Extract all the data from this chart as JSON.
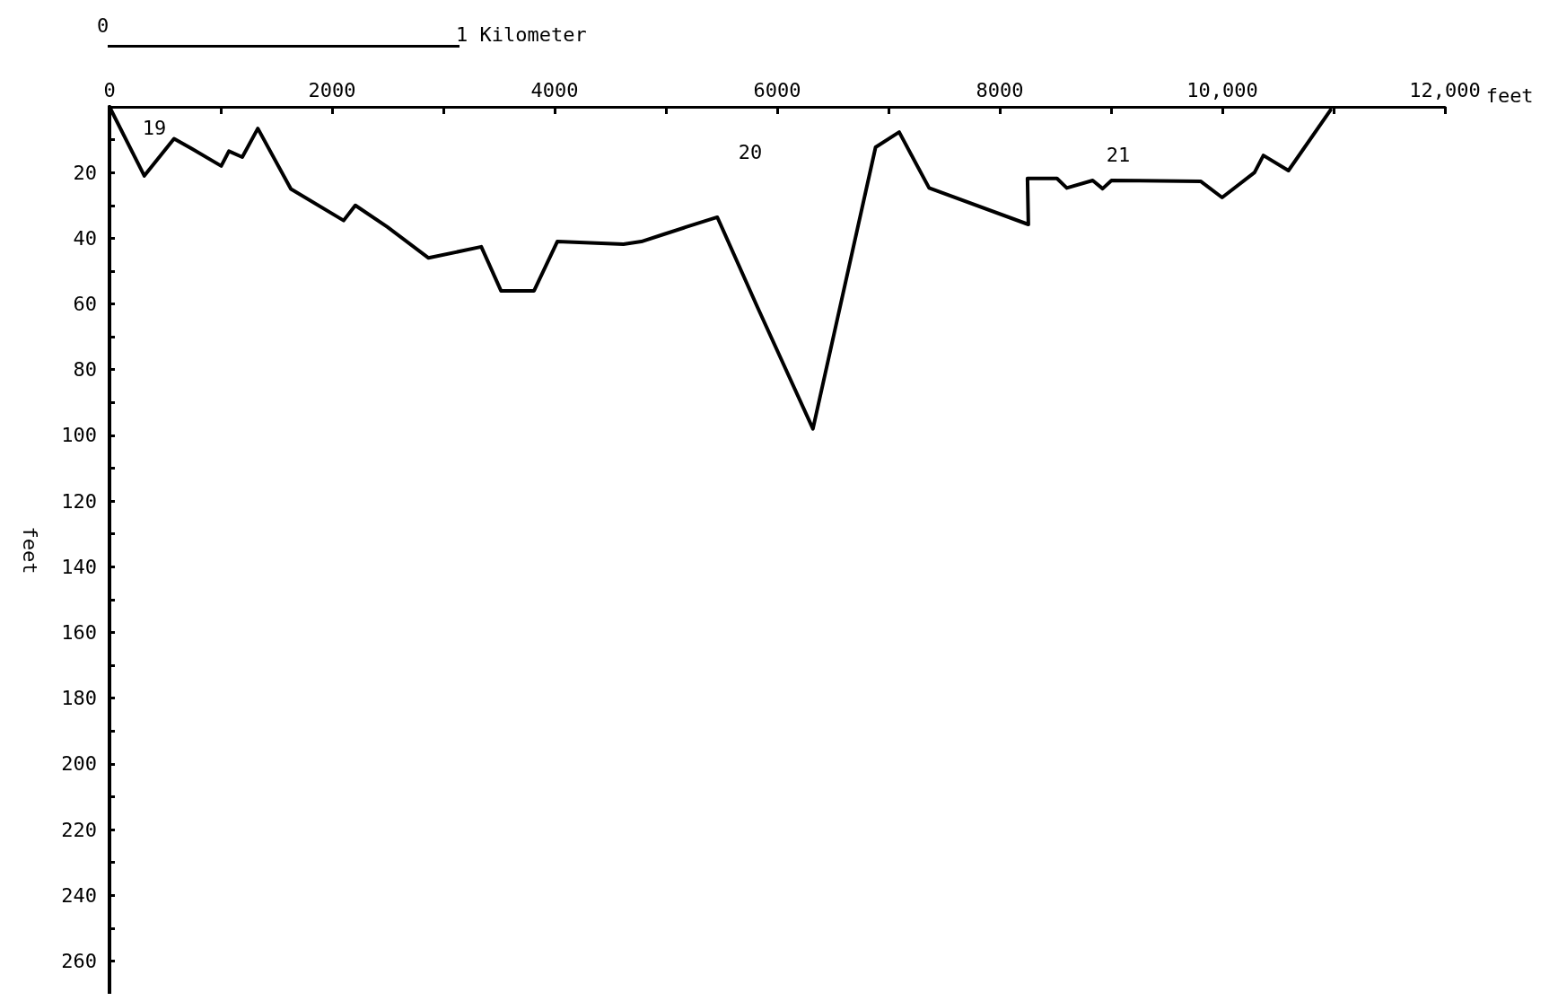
{
  "chart_data": {
    "type": "line",
    "xlabel": "feet",
    "ylabel": "feet",
    "x": [
      0,
      313,
      580,
      738,
      1004,
      1073,
      1193,
      1333,
      1630,
      2104,
      2209,
      2498,
      2867,
      3341,
      3518,
      3815,
      4024,
      4618,
      4779,
      4980,
      5180,
      5462,
      5823,
      6321,
      6884,
      7096,
      7365,
      8257,
      8249,
      8514,
      8602,
      8835,
      8924,
      9004,
      9807,
      9998,
      10289,
      10369,
      10594,
      10972
    ],
    "series": [
      {
        "color": "#000000",
        "values": [
          0,
          21,
          9.7,
          12.7,
          18,
          13.5,
          15.3,
          6.6,
          25,
          34.6,
          30,
          36.6,
          46,
          42.6,
          56,
          56,
          41,
          41.8,
          41,
          38.8,
          36.6,
          33.6,
          61,
          98,
          12.3,
          7.7,
          24.7,
          35.8,
          21.8,
          21.8,
          24.7,
          22.4,
          24.9,
          22.4,
          22.7,
          27.6,
          20,
          14.8,
          19.4,
          1
        ]
      }
    ],
    "xlim": [
      0,
      12000
    ],
    "xticks": [
      0,
      {
        "value": 1000,
        "label": null
      },
      2000,
      {
        "value": 3000,
        "label": null
      },
      4000,
      {
        "value": 5000,
        "label": null
      },
      6000,
      {
        "value": 7000,
        "label": null
      },
      8000,
      {
        "value": 9000,
        "label": null
      },
      {
        "value": 10000,
        "label": "10,000"
      },
      {
        "value": 11000,
        "label": null
      },
      {
        "value": 12000,
        "label": "12,000"
      }
    ],
    "ylim": [
      270,
      0
    ],
    "yticks": [
      {
        "value": 10,
        "label": null
      },
      20,
      {
        "value": 30,
        "label": null
      },
      40,
      {
        "value": 50,
        "label": null
      },
      60,
      {
        "value": 70,
        "label": null
      },
      80,
      {
        "value": 90,
        "label": null
      },
      100,
      {
        "value": 110,
        "label": null
      },
      120,
      {
        "value": 130,
        "label": null
      },
      140,
      {
        "value": 150,
        "label": null
      },
      160,
      {
        "value": 170,
        "label": null
      },
      180,
      {
        "value": 190,
        "label": null
      },
      200,
      {
        "value": 210,
        "label": null
      },
      220,
      {
        "value": 230,
        "label": null
      },
      240,
      {
        "value": 250,
        "label": null
      },
      260
    ],
    "annotations": [
      "0",
      "1 Kilometer",
      "19",
      "20",
      "21"
    ],
    "grid": false,
    "marker": "none",
    "line_style": "solid"
  }
}
